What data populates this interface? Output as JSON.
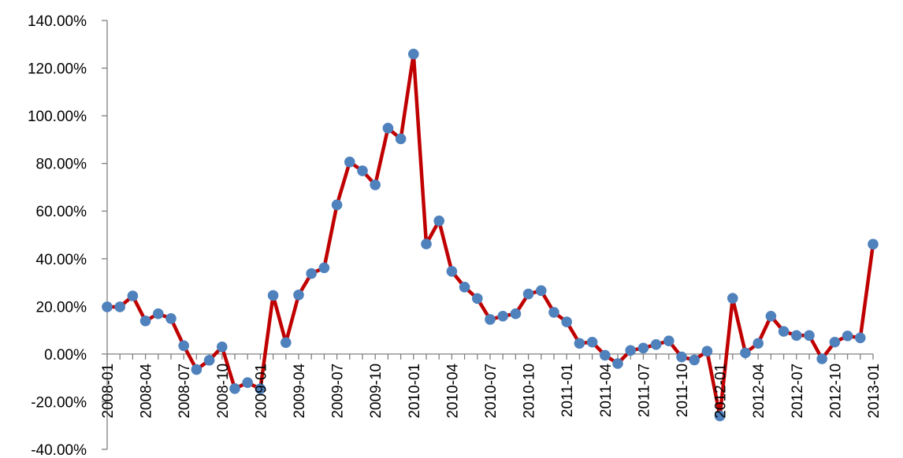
{
  "chart_data": {
    "type": "line",
    "title": "",
    "xlabel": "",
    "ylabel": "",
    "ylim": [
      -40,
      140
    ],
    "y_ticks": [
      -40,
      -20,
      0,
      20,
      40,
      60,
      80,
      100,
      120,
      140
    ],
    "y_tick_labels": [
      "-40.00%",
      "-20.00%",
      "0.00%",
      "20.00%",
      "40.00%",
      "60.00%",
      "80.00%",
      "100.00%",
      "120.00%",
      "140.00%"
    ],
    "x_tick_labels": [
      "2008-01",
      "2008-04",
      "2008-07",
      "2008-10",
      "2009-01",
      "2009-04",
      "2009-07",
      "2009-10",
      "2010-01",
      "2010-04",
      "2010-07",
      "2010-10",
      "2011-01",
      "2011-04",
      "2011-07",
      "2011-10",
      "2012-01",
      "2012-04",
      "2012-07",
      "2012-10",
      "2013-01"
    ],
    "x_tick_every": 3,
    "grid": false,
    "legend": "none",
    "line_color": "#C00000",
    "marker_color": "#4F81BD",
    "axis_color": "#808080",
    "series": [
      {
        "x": [
          "2008-01",
          "2008-02",
          "2008-03",
          "2008-04",
          "2008-05",
          "2008-06",
          "2008-07",
          "2008-08",
          "2008-09",
          "2008-10",
          "2008-11",
          "2008-12",
          "2009-01",
          "2009-02",
          "2009-03",
          "2009-04",
          "2009-05",
          "2009-06",
          "2009-07",
          "2009-08",
          "2009-09",
          "2009-10",
          "2009-11",
          "2009-12",
          "2010-01",
          "2010-02",
          "2010-03",
          "2010-04",
          "2010-05",
          "2010-06",
          "2010-07",
          "2010-08",
          "2010-09",
          "2010-10",
          "2010-11",
          "2010-12",
          "2011-01",
          "2011-02",
          "2011-03",
          "2011-04",
          "2011-05",
          "2011-06",
          "2011-07",
          "2011-08",
          "2011-09",
          "2011-10",
          "2011-11",
          "2011-12",
          "2012-01",
          "2012-02",
          "2012-03",
          "2012-04",
          "2012-05",
          "2012-06",
          "2012-07",
          "2012-08",
          "2012-09",
          "2012-10",
          "2012-11",
          "2012-12",
          "2013-01"
        ],
        "values": [
          19.8,
          19.8,
          24.4,
          13.9,
          16.9,
          14.9,
          3.5,
          -6.5,
          -2.6,
          3.0,
          -14.5,
          -12.0,
          -14.6,
          24.6,
          4.8,
          24.8,
          33.8,
          36.2,
          62.6,
          80.6,
          76.9,
          71.0,
          94.8,
          90.3,
          125.9,
          46.2,
          55.9,
          34.7,
          28.1,
          23.3,
          14.5,
          15.9,
          16.9,
          25.2,
          26.6,
          17.5,
          13.5,
          4.5,
          5.0,
          -0.5,
          -4.0,
          1.5,
          2.5,
          4.0,
          5.5,
          -1.2,
          -2.5,
          1.2,
          -26.0,
          23.4,
          0.5,
          4.5,
          15.9,
          9.5,
          7.8,
          7.8,
          -2.0,
          5.0,
          7.6,
          6.8,
          46.1
        ]
      }
    ]
  }
}
